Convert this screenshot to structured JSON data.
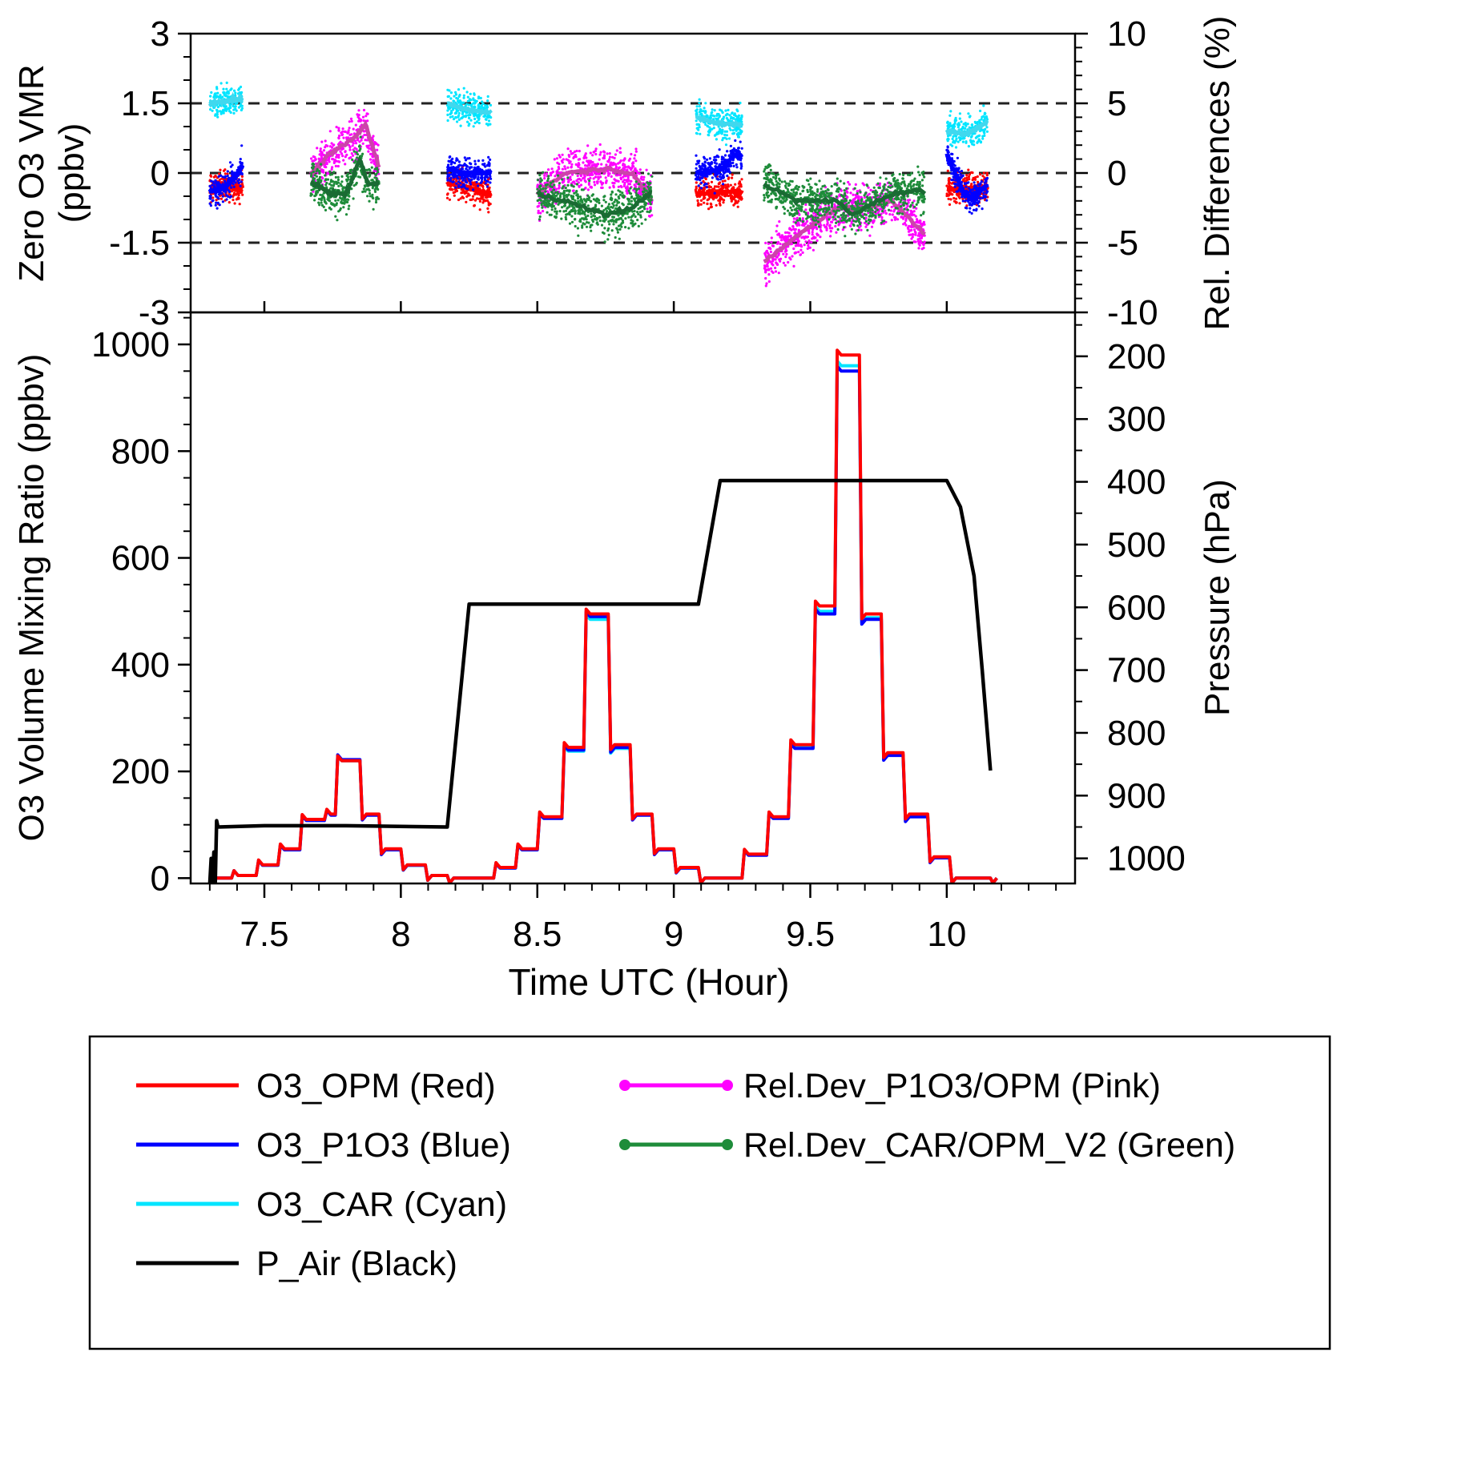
{
  "chart_data": [
    {
      "panel": "top",
      "type": "scatter",
      "ylabel": [
        "Zero O3 VMR",
        "(ppbv)"
      ],
      "ylim": [
        -3,
        3
      ],
      "yticks": [
        "3",
        "1.5",
        "0",
        "-1.5",
        "-3"
      ],
      "y2label": "Rel. Differences (%)",
      "y2lim": [
        -10,
        10
      ],
      "y2ticks": [
        "10",
        "5",
        "0",
        "-5",
        "-10"
      ],
      "xlim": [
        7.23,
        10.47
      ],
      "reference_lines": [
        1.5,
        0,
        -1.5
      ],
      "zero_segments": [
        [
          7.3,
          7.42
        ],
        [
          8.17,
          8.33
        ],
        [
          9.08,
          9.25
        ],
        [
          10.0,
          10.15
        ]
      ],
      "rel_segments": [
        [
          7.67,
          7.92
        ],
        [
          8.5,
          8.92
        ],
        [
          9.33,
          9.92
        ]
      ],
      "series": [
        {
          "name": "O3_OPM (Red)",
          "axis": "left",
          "color": "#ff0000",
          "mean": [
            [
              7.3,
              -0.3
            ],
            [
              7.42,
              -0.3
            ],
            [
              8.17,
              -0.2
            ],
            [
              8.33,
              -0.45
            ],
            [
              9.08,
              -0.45
            ],
            [
              9.25,
              -0.4
            ],
            [
              10.0,
              -0.35
            ],
            [
              10.15,
              -0.3
            ]
          ]
        },
        {
          "name": "O3_P1O3 (Blue)",
          "axis": "left",
          "color": "#0000ff",
          "mean": [
            [
              7.3,
              -0.4
            ],
            [
              7.36,
              -0.3
            ],
            [
              7.42,
              0.15
            ],
            [
              8.17,
              0.1
            ],
            [
              8.23,
              0.0
            ],
            [
              8.33,
              0.0
            ],
            [
              9.08,
              0.0
            ],
            [
              9.18,
              0.1
            ],
            [
              9.22,
              0.4
            ],
            [
              9.25,
              0.3
            ],
            [
              10.0,
              0.4
            ],
            [
              10.06,
              -0.4
            ],
            [
              10.09,
              -0.55
            ],
            [
              10.15,
              -0.25
            ]
          ]
        },
        {
          "name": "O3_CAR (Cyan)",
          "axis": "left",
          "color": "#00e5ff",
          "mean": [
            [
              7.3,
              1.5
            ],
            [
              7.36,
              1.55
            ],
            [
              7.42,
              1.6
            ],
            [
              8.17,
              1.5
            ],
            [
              8.25,
              1.35
            ],
            [
              8.33,
              1.3
            ],
            [
              9.08,
              1.2
            ],
            [
              9.18,
              1.05
            ],
            [
              9.25,
              1.05
            ],
            [
              10.0,
              0.9
            ],
            [
              10.08,
              0.85
            ],
            [
              10.15,
              1.1
            ]
          ]
        },
        {
          "name": "Rel.Dev_P1O3/OPM (Pink)",
          "axis": "right",
          "color": "#ff00ff",
          "mean": [
            [
              7.67,
              0.0
            ],
            [
              7.75,
              1.5
            ],
            [
              7.83,
              2.5
            ],
            [
              7.87,
              3.5
            ],
            [
              7.92,
              0.5
            ],
            [
              8.5,
              -1.5
            ],
            [
              8.6,
              0.0
            ],
            [
              8.75,
              0.3
            ],
            [
              8.85,
              0.0
            ],
            [
              8.92,
              -2.0
            ],
            [
              9.33,
              -6.5
            ],
            [
              9.45,
              -4.5
            ],
            [
              9.6,
              -2.5
            ],
            [
              9.7,
              -2.5
            ],
            [
              9.8,
              -2.0
            ],
            [
              9.9,
              -4.0
            ],
            [
              9.92,
              -4.5
            ]
          ]
        },
        {
          "name": "Rel.Dev_CAR/OPM_V2 (Green)",
          "axis": "right",
          "color": "#1e8c3a",
          "mean": [
            [
              7.67,
              -0.7
            ],
            [
              7.75,
              -1.5
            ],
            [
              7.8,
              -1.5
            ],
            [
              7.85,
              1.0
            ],
            [
              7.88,
              -0.8
            ],
            [
              7.92,
              -0.8
            ],
            [
              8.5,
              -1.5
            ],
            [
              8.6,
              -2.0
            ],
            [
              8.75,
              -3.0
            ],
            [
              8.85,
              -2.5
            ],
            [
              8.92,
              -1.3
            ],
            [
              9.33,
              -0.8
            ],
            [
              9.45,
              -2.0
            ],
            [
              9.6,
              -2.0
            ],
            [
              9.65,
              -3.0
            ],
            [
              9.8,
              -1.5
            ],
            [
              9.9,
              -1.2
            ],
            [
              9.92,
              -1.5
            ]
          ]
        }
      ]
    },
    {
      "panel": "bottom",
      "type": "line",
      "xlabel": "Time UTC (Hour)",
      "xlim": [
        7.23,
        10.47
      ],
      "xticks": [
        "7.5",
        "8",
        "8.5",
        "9",
        "9.5",
        "10"
      ],
      "ylabel": "O3 Volume Mixing Ratio (ppbv)",
      "ylim": [
        -10,
        1060
      ],
      "yticks": [
        "0",
        "200",
        "400",
        "600",
        "800",
        "1000"
      ],
      "y2label": "Pressure (hPa)",
      "y2lim": [
        1040,
        130
      ],
      "y2ticks": [
        "200",
        "300",
        "400",
        "500",
        "600",
        "700",
        "800",
        "900",
        "1000"
      ],
      "series": [
        {
          "name": "O3_OPM (Red)",
          "axis": "left",
          "color": "#ff0000",
          "steps": [
            [
              7.3,
              0
            ],
            [
              7.38,
              5
            ],
            [
              7.47,
              25
            ],
            [
              7.55,
              55
            ],
            [
              7.63,
              110
            ],
            [
              7.72,
              120
            ],
            [
              7.76,
              220
            ],
            [
              7.85,
              120
            ],
            [
              7.92,
              55
            ],
            [
              8.0,
              25
            ],
            [
              8.09,
              5
            ],
            [
              8.17,
              0
            ],
            [
              8.34,
              20
            ],
            [
              8.42,
              55
            ],
            [
              8.5,
              115
            ],
            [
              8.59,
              245
            ],
            [
              8.67,
              495
            ],
            [
              8.76,
              250
            ],
            [
              8.84,
              120
            ],
            [
              8.92,
              55
            ],
            [
              9.0,
              20
            ],
            [
              9.09,
              0
            ],
            [
              9.25,
              45
            ],
            [
              9.34,
              115
            ],
            [
              9.42,
              250
            ],
            [
              9.51,
              510
            ],
            [
              9.59,
              980
            ],
            [
              9.68,
              495
            ],
            [
              9.76,
              235
            ],
            [
              9.84,
              120
            ],
            [
              9.93,
              40
            ],
            [
              10.01,
              0
            ],
            [
              10.16,
              0
            ]
          ]
        },
        {
          "name": "O3_P1O3 (Blue)",
          "axis": "left",
          "color": "#0000ff",
          "steps": [
            [
              7.3,
              0
            ],
            [
              7.38,
              5
            ],
            [
              7.47,
              24
            ],
            [
              7.55,
              53
            ],
            [
              7.63,
              108
            ],
            [
              7.72,
              118
            ],
            [
              7.76,
              222
            ],
            [
              7.85,
              118
            ],
            [
              7.92,
              53
            ],
            [
              8.0,
              24
            ],
            [
              8.09,
              5
            ],
            [
              8.17,
              0
            ],
            [
              8.34,
              19
            ],
            [
              8.42,
              53
            ],
            [
              8.5,
              112
            ],
            [
              8.59,
              240
            ],
            [
              8.67,
              490
            ],
            [
              8.76,
              245
            ],
            [
              8.84,
              118
            ],
            [
              8.92,
              53
            ],
            [
              9.0,
              19
            ],
            [
              9.09,
              0
            ],
            [
              9.25,
              43
            ],
            [
              9.34,
              112
            ],
            [
              9.42,
              243
            ],
            [
              9.51,
              495
            ],
            [
              9.59,
              950
            ],
            [
              9.68,
              485
            ],
            [
              9.76,
              230
            ],
            [
              9.84,
              115
            ],
            [
              9.93,
              38
            ],
            [
              10.01,
              0
            ],
            [
              10.16,
              0
            ]
          ]
        },
        {
          "name": "O3_CAR (Cyan)",
          "axis": "left",
          "color": "#00e5ff",
          "steps": [
            [
              7.3,
              0
            ],
            [
              7.38,
              5
            ],
            [
              7.47,
              24
            ],
            [
              7.55,
              54
            ],
            [
              7.63,
              109
            ],
            [
              7.72,
              119
            ],
            [
              7.76,
              220
            ],
            [
              7.85,
              119
            ],
            [
              7.92,
              54
            ],
            [
              8.0,
              24
            ],
            [
              8.09,
              5
            ],
            [
              8.17,
              0
            ],
            [
              8.34,
              19
            ],
            [
              8.42,
              54
            ],
            [
              8.5,
              113
            ],
            [
              8.59,
              238
            ],
            [
              8.67,
              485
            ],
            [
              8.76,
              243
            ],
            [
              8.84,
              119
            ],
            [
              8.92,
              54
            ],
            [
              9.0,
              19
            ],
            [
              9.09,
              0
            ],
            [
              9.25,
              44
            ],
            [
              9.34,
              113
            ],
            [
              9.42,
              245
            ],
            [
              9.51,
              500
            ],
            [
              9.59,
              960
            ],
            [
              9.68,
              488
            ],
            [
              9.76,
              232
            ],
            [
              9.84,
              117
            ],
            [
              9.93,
              39
            ],
            [
              10.01,
              0
            ],
            [
              10.16,
              0
            ]
          ]
        },
        {
          "name": "P_Air (Black)",
          "axis": "right",
          "color": "#000000",
          "x": [
            7.3,
            7.305,
            7.31,
            7.315,
            7.32,
            7.325,
            7.33,
            7.5,
            7.8,
            8.17,
            8.25,
            8.5,
            9.0,
            9.09,
            9.17,
            9.5,
            9.9,
            10.0,
            10.05,
            10.1,
            10.13,
            10.16
          ],
          "y": [
            1040,
            1000,
            1040,
            990,
            1040,
            940,
            950,
            948,
            948,
            950,
            595,
            595,
            595,
            595,
            398,
            398,
            398,
            398,
            440,
            550,
            700,
            860
          ]
        }
      ]
    }
  ],
  "legend": {
    "items": [
      {
        "label": "O3_OPM (Red)",
        "color": "#ff0000",
        "marker": false
      },
      {
        "label": "O3_P1O3 (Blue)",
        "color": "#0000ff",
        "marker": false
      },
      {
        "label": "O3_CAR (Cyan)",
        "color": "#00e5ff",
        "marker": false
      },
      {
        "label": "P_Air (Black)",
        "color": "#000000",
        "marker": false
      },
      {
        "label": "Rel.Dev_P1O3/OPM (Pink)",
        "color": "#ff00ff",
        "marker": true
      },
      {
        "label": "Rel.Dev_CAR/OPM_V2 (Green)",
        "color": "#1e8c3a",
        "marker": true
      }
    ]
  }
}
